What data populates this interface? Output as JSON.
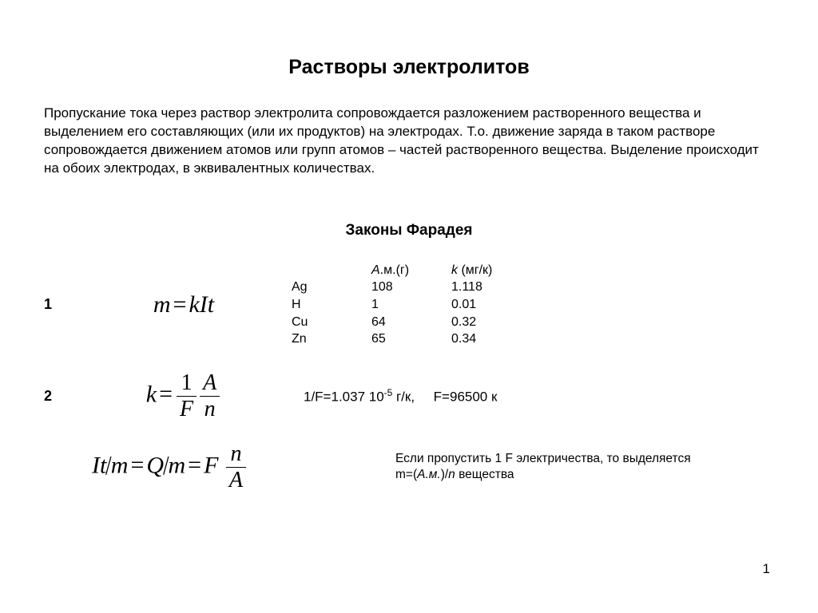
{
  "title": "Растворы электролитов",
  "intro": "Пропускание тока через раствор электролита сопровождается разложением растворенного вещества и выделением его составляющих (или их продуктов) на электродах. Т.о. движение заряда в таком растворе сопровождается движением атомов или групп атомов – частей растворенного вещества. Выделение происходит на обоих электродах, в эквивалентных количествах.",
  "subtitle": "Законы Фарадея",
  "law1_num": "1",
  "law2_num": "2",
  "formula1_html": "<span>m</span><span class=\"op\">=</span><span>kIt</span>",
  "formula2_html": "<span>k</span><span class=\"op\">=</span><span class=\"frac\"><span class=\"num\" style=\"font-style:normal\">1</span><span class=\"den\">F</span></span><span class=\"frac\"><span class=\"num\">A</span><span class=\"den\">n</span></span>",
  "formula3_html": "<span>It</span><span class=\"bigsl\">/</span><span>m</span><span class=\"op\">=</span><span>Q</span><span class=\"bigsl\">/</span><span>m</span><span class=\"op\">=</span><span>F</span>&nbsp;<span class=\"frac\"><span class=\"num\">n</span><span class=\"den\">A</span></span>",
  "table": {
    "head_am": "А",
    "head_am_unit": ".м.(г)",
    "head_k": "k",
    "head_k_unit": " (мг/к)",
    "rows": [
      {
        "el": "Ag",
        "am": "108",
        "k": "1.118"
      },
      {
        "el": "H",
        "am": "1",
        "k": "0.01"
      },
      {
        "el": "Cu",
        "am": "64",
        "k": "0.32"
      },
      {
        "el": "Zn",
        "am": "65",
        "k": "0.34"
      }
    ]
  },
  "row2_text_html": "1/F=1.037 10<span class=\"sup\">-5</span> г/к,&nbsp;&nbsp;&nbsp;&nbsp;&nbsp;F=96500 к",
  "row3_text_html": "Если пропустить 1 F электричества, то выделяется<br>m=(<span class=\"it\">А.м.</span>)/<span class=\"it\">n</span> вещества",
  "page_number": "1",
  "colors": {
    "bg": "#ffffff",
    "text": "#000000"
  },
  "typography": {
    "title_size": 25,
    "title_weight": 700,
    "body_size": 17,
    "subtitle_size": 19,
    "subtitle_weight": 700,
    "formula_family": "Times New Roman",
    "formula_size": 30,
    "table_size": 16,
    "note_size": 15.5
  }
}
